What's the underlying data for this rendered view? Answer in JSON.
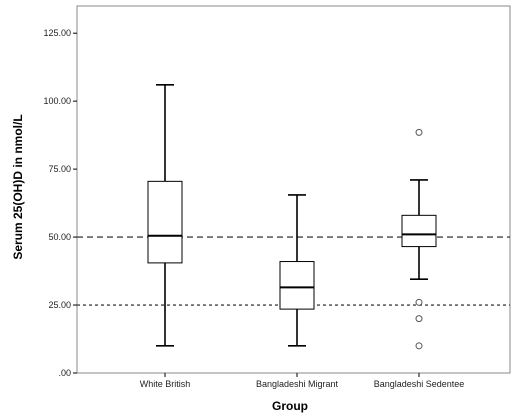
{
  "chart_data": {
    "type": "boxplot",
    "title": "",
    "xlabel": "Group",
    "ylabel": "Serum 25(OH)D in nmol/L",
    "ylim": [
      0,
      135
    ],
    "y_ticks": [
      0,
      25,
      50,
      75,
      100,
      125
    ],
    "y_tick_labels": [
      ".00",
      "25.00",
      "50.00",
      "75.00",
      "100.00",
      "125.00"
    ],
    "categories": [
      "White British",
      "Bangladeshi Migrant",
      "Bangladeshi Sedentee"
    ],
    "boxes": [
      {
        "category": "White British",
        "whisker_low": 10,
        "q1": 40.5,
        "median": 50.5,
        "q3": 70.5,
        "whisker_high": 106,
        "outliers": []
      },
      {
        "category": "Bangladeshi Migrant",
        "whisker_low": 10,
        "q1": 23.5,
        "median": 31.5,
        "q3": 41,
        "whisker_high": 65.5,
        "outliers": []
      },
      {
        "category": "Bangladeshi Sedentee",
        "whisker_low": 34.5,
        "q1": 46.5,
        "median": 51,
        "q3": 58,
        "whisker_high": 71,
        "outliers": [
          88.5,
          26,
          20,
          10
        ]
      }
    ],
    "reference_lines": [
      {
        "value": 50,
        "style": "dashed"
      },
      {
        "value": 25,
        "style": "dotted"
      }
    ],
    "grid": false,
    "legend": "none",
    "colors": {
      "background": "#ffffff",
      "box_fill": "#ffffff",
      "stroke": "#000000",
      "frame": "#888888",
      "reference_line": "#444444"
    }
  }
}
